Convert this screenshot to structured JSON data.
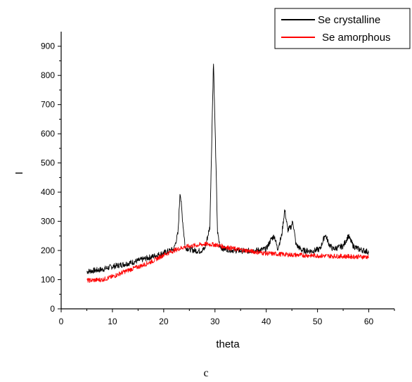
{
  "chart_data": {
    "type": "line",
    "title": "",
    "xlabel": "theta",
    "ylabel": "I",
    "xlim": [
      0,
      65
    ],
    "ylim": [
      0,
      950
    ],
    "xticks": [
      0,
      10,
      20,
      30,
      40,
      50,
      60
    ],
    "yticks": [
      0,
      100,
      200,
      300,
      400,
      500,
      600,
      700,
      800,
      900
    ],
    "grid": false,
    "legend_position": "top-right",
    "caption": "c",
    "series": [
      {
        "name": "Se crystalline",
        "color": "#000000",
        "points": [
          [
            5,
            128
          ],
          [
            8,
            135
          ],
          [
            10,
            145
          ],
          [
            12,
            152
          ],
          [
            14,
            160
          ],
          [
            16,
            170
          ],
          [
            18,
            180
          ],
          [
            20,
            192
          ],
          [
            21,
            198
          ],
          [
            22,
            205
          ],
          [
            22.8,
            260
          ],
          [
            23.2,
            405
          ],
          [
            23.7,
            300
          ],
          [
            24.2,
            210
          ],
          [
            25,
            205
          ],
          [
            26,
            200
          ],
          [
            27,
            198
          ],
          [
            28,
            205
          ],
          [
            29,
            280
          ],
          [
            29.4,
            600
          ],
          [
            29.7,
            855
          ],
          [
            30.1,
            560
          ],
          [
            30.5,
            260
          ],
          [
            31,
            210
          ],
          [
            32,
            205
          ],
          [
            34,
            200
          ],
          [
            36,
            198
          ],
          [
            38,
            200
          ],
          [
            40,
            205
          ],
          [
            41,
            240
          ],
          [
            41.6,
            250
          ],
          [
            42.2,
            205
          ],
          [
            43,
            250
          ],
          [
            43.6,
            340
          ],
          [
            44.2,
            270
          ],
          [
            44.8,
            280
          ],
          [
            45.2,
            300
          ],
          [
            45.8,
            220
          ],
          [
            47,
            200
          ],
          [
            49,
            198
          ],
          [
            50.5,
            205
          ],
          [
            51.5,
            255
          ],
          [
            52.3,
            220
          ],
          [
            53,
            205
          ],
          [
            55,
            215
          ],
          [
            56,
            250
          ],
          [
            57,
            215
          ],
          [
            58,
            205
          ],
          [
            60,
            195
          ]
        ],
        "noise": 10
      },
      {
        "name": "Se amorphous",
        "color": "#ff0000",
        "points": [
          [
            5,
            97
          ],
          [
            8,
            100
          ],
          [
            10,
            110
          ],
          [
            12,
            125
          ],
          [
            14,
            138
          ],
          [
            16,
            150
          ],
          [
            18,
            165
          ],
          [
            20,
            185
          ],
          [
            22,
            200
          ],
          [
            24,
            212
          ],
          [
            26,
            217
          ],
          [
            28,
            222
          ],
          [
            30,
            220
          ],
          [
            32,
            212
          ],
          [
            34,
            205
          ],
          [
            36,
            200
          ],
          [
            38,
            195
          ],
          [
            40,
            190
          ],
          [
            45,
            185
          ],
          [
            50,
            182
          ],
          [
            55,
            180
          ],
          [
            60,
            178
          ]
        ],
        "noise": 8
      }
    ]
  }
}
